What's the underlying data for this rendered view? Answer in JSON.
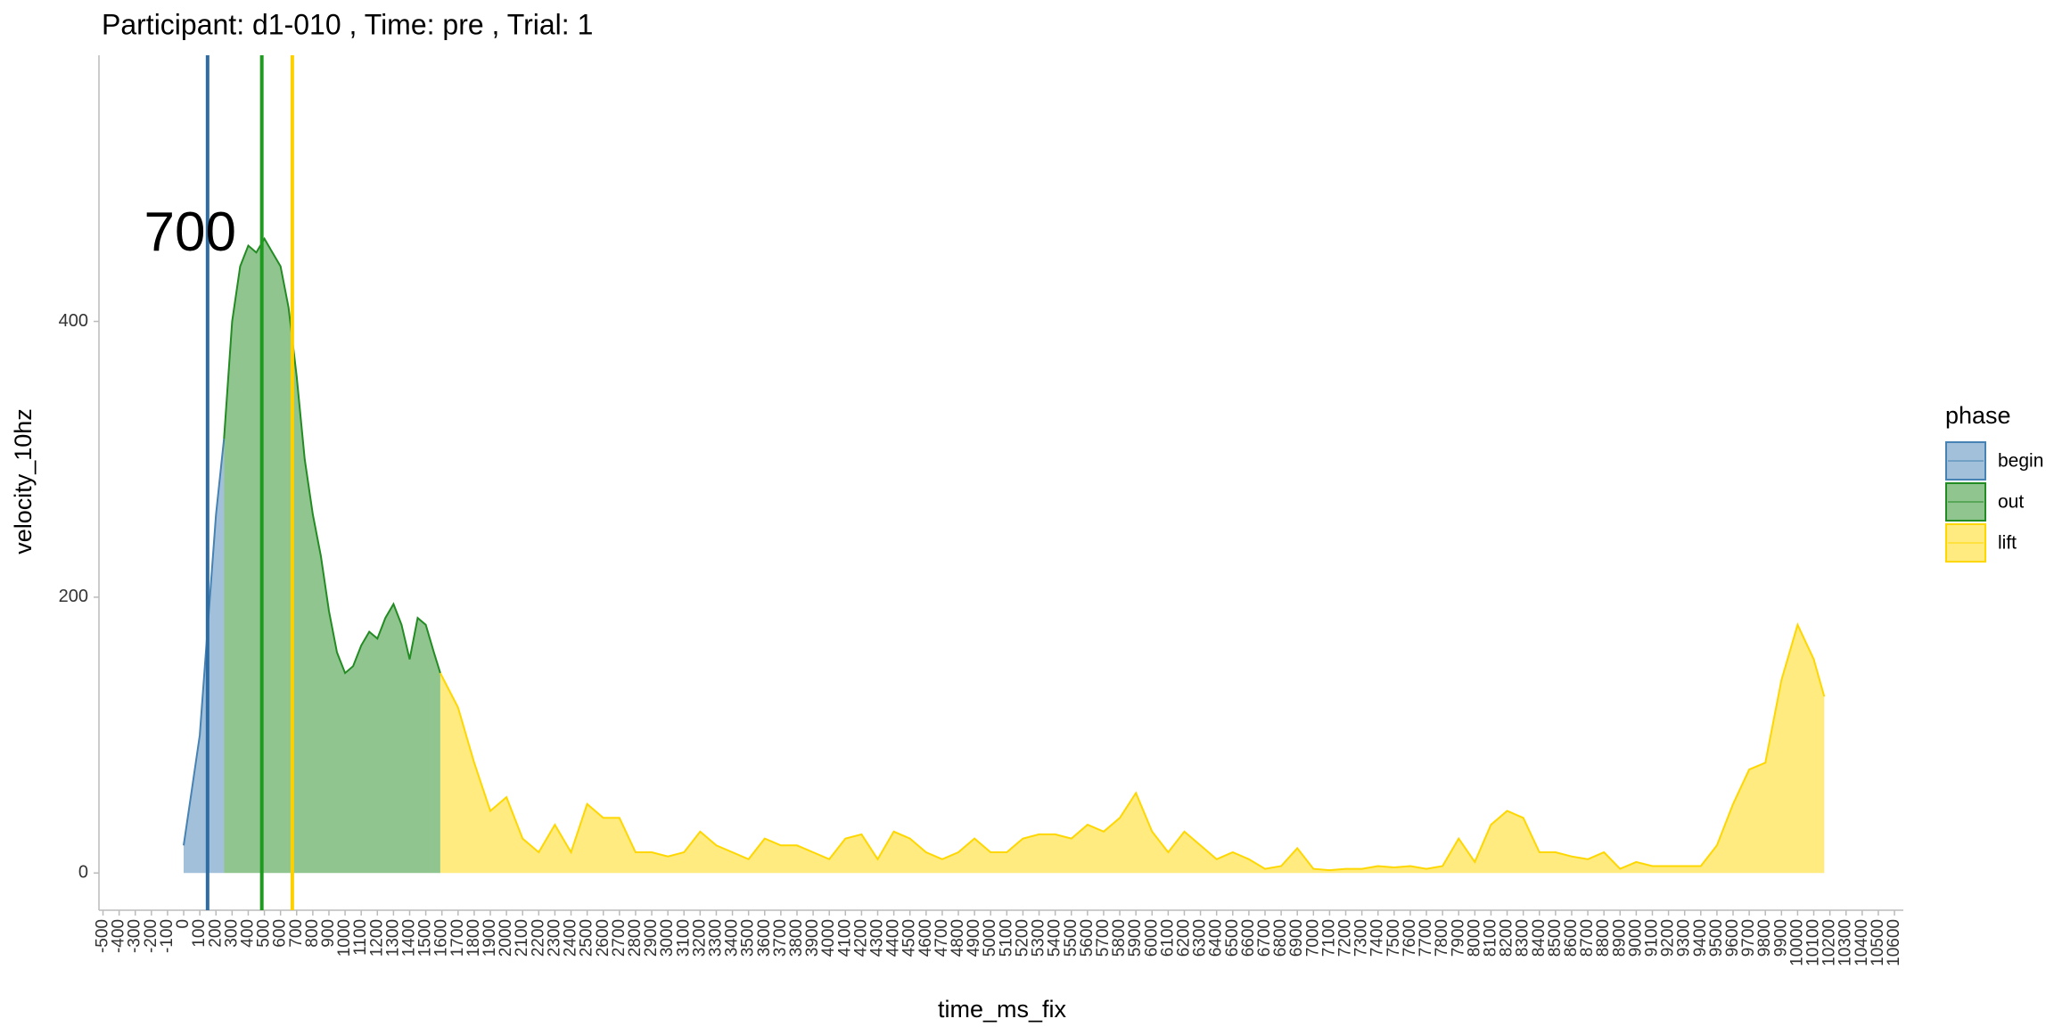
{
  "chart_data": {
    "type": "area",
    "title": "Participant:  d1-010 , Time: pre , Trial:  1",
    "x_label": "time_ms_fix",
    "y_label": "velocity_10hz",
    "legend_title": "phase",
    "xlim": [
      -525,
      10655
    ],
    "ylim": [
      -27,
      593
    ],
    "yticks": [
      0,
      200,
      400
    ],
    "xticks": [
      -500,
      -400,
      -300,
      -200,
      -100,
      0,
      100,
      200,
      300,
      400,
      500,
      600,
      700,
      800,
      900,
      1000,
      1100,
      1200,
      1300,
      1400,
      1500,
      1600,
      1700,
      1800,
      1900,
      2000,
      2100,
      2200,
      2300,
      2400,
      2500,
      2600,
      2700,
      2800,
      2900,
      3000,
      3100,
      3200,
      3300,
      3400,
      3500,
      3600,
      3700,
      3800,
      3900,
      4000,
      4100,
      4200,
      4300,
      4400,
      4500,
      4600,
      4700,
      4800,
      4900,
      5000,
      5100,
      5200,
      5300,
      5400,
      5500,
      5600,
      5700,
      5800,
      5900,
      6000,
      6100,
      6200,
      6300,
      6400,
      6500,
      6600,
      6700,
      6800,
      6900,
      7000,
      7100,
      7200,
      7300,
      7400,
      7500,
      7600,
      7700,
      7800,
      7900,
      8000,
      8100,
      8200,
      8300,
      8400,
      8500,
      8600,
      8700,
      8800,
      8900,
      9000,
      9100,
      9200,
      9300,
      9400,
      9500,
      9600,
      9700,
      9800,
      9900,
      10000,
      10100,
      10200,
      10300,
      10400,
      10500,
      10600
    ],
    "series": [
      {
        "name": "begin",
        "color": "#4682B4",
        "x": [
          0,
          50,
          100,
          150,
          200,
          250
        ],
        "values": [
          20,
          60,
          100,
          180,
          260,
          315
        ]
      },
      {
        "name": "out",
        "color": "#228B22",
        "x": [
          250,
          300,
          350,
          400,
          450,
          500,
          550,
          600,
          650,
          700,
          750,
          800,
          850,
          900,
          950,
          1000,
          1050,
          1100,
          1150,
          1200,
          1250,
          1300,
          1350,
          1400,
          1450,
          1500,
          1550,
          1590
        ],
        "values": [
          315,
          400,
          440,
          455,
          450,
          460,
          450,
          440,
          410,
          360,
          300,
          260,
          230,
          190,
          160,
          145,
          150,
          165,
          175,
          170,
          185,
          195,
          180,
          155,
          185,
          180,
          160,
          145
        ]
      },
      {
        "name": "lift",
        "color": "#FFD700",
        "x": [
          1590,
          1700,
          1800,
          1900,
          2000,
          2100,
          2200,
          2300,
          2400,
          2500,
          2600,
          2700,
          2800,
          2900,
          3000,
          3100,
          3200,
          3300,
          3400,
          3500,
          3600,
          3700,
          3800,
          3900,
          4000,
          4100,
          4200,
          4300,
          4400,
          4500,
          4600,
          4700,
          4800,
          4900,
          5000,
          5100,
          5200,
          5300,
          5400,
          5500,
          5600,
          5700,
          5800,
          5900,
          6000,
          6100,
          6200,
          6300,
          6400,
          6500,
          6600,
          6700,
          6800,
          6900,
          7000,
          7100,
          7200,
          7300,
          7400,
          7500,
          7600,
          7700,
          7800,
          7900,
          8000,
          8100,
          8200,
          8300,
          8400,
          8500,
          8600,
          8700,
          8800,
          8900,
          9000,
          9100,
          9200,
          9300,
          9400,
          9500,
          9600,
          9700,
          9800,
          9900,
          10000,
          10100,
          10165
        ],
        "values": [
          145,
          120,
          80,
          45,
          55,
          25,
          15,
          35,
          15,
          50,
          40,
          40,
          15,
          15,
          12,
          15,
          30,
          20,
          15,
          10,
          25,
          20,
          20,
          15,
          10,
          25,
          28,
          10,
          30,
          25,
          15,
          10,
          15,
          25,
          15,
          15,
          25,
          28,
          28,
          25,
          35,
          30,
          40,
          58,
          30,
          15,
          30,
          20,
          10,
          15,
          10,
          3,
          5,
          18,
          3,
          2,
          3,
          3,
          5,
          4,
          5,
          3,
          5,
          25,
          8,
          35,
          45,
          40,
          15,
          15,
          12,
          10,
          15,
          3,
          8,
          5,
          5,
          5,
          5,
          20,
          50,
          75,
          80,
          140,
          180,
          155,
          128
        ]
      }
    ],
    "vlines": [
      {
        "x": 148,
        "color": "#2E6DA4"
      },
      {
        "x": 484,
        "color": "#1E9A1E"
      },
      {
        "x": 673,
        "color": "#FFD000"
      }
    ],
    "annotation": {
      "text": "700",
      "x": 40,
      "y": 462
    }
  }
}
